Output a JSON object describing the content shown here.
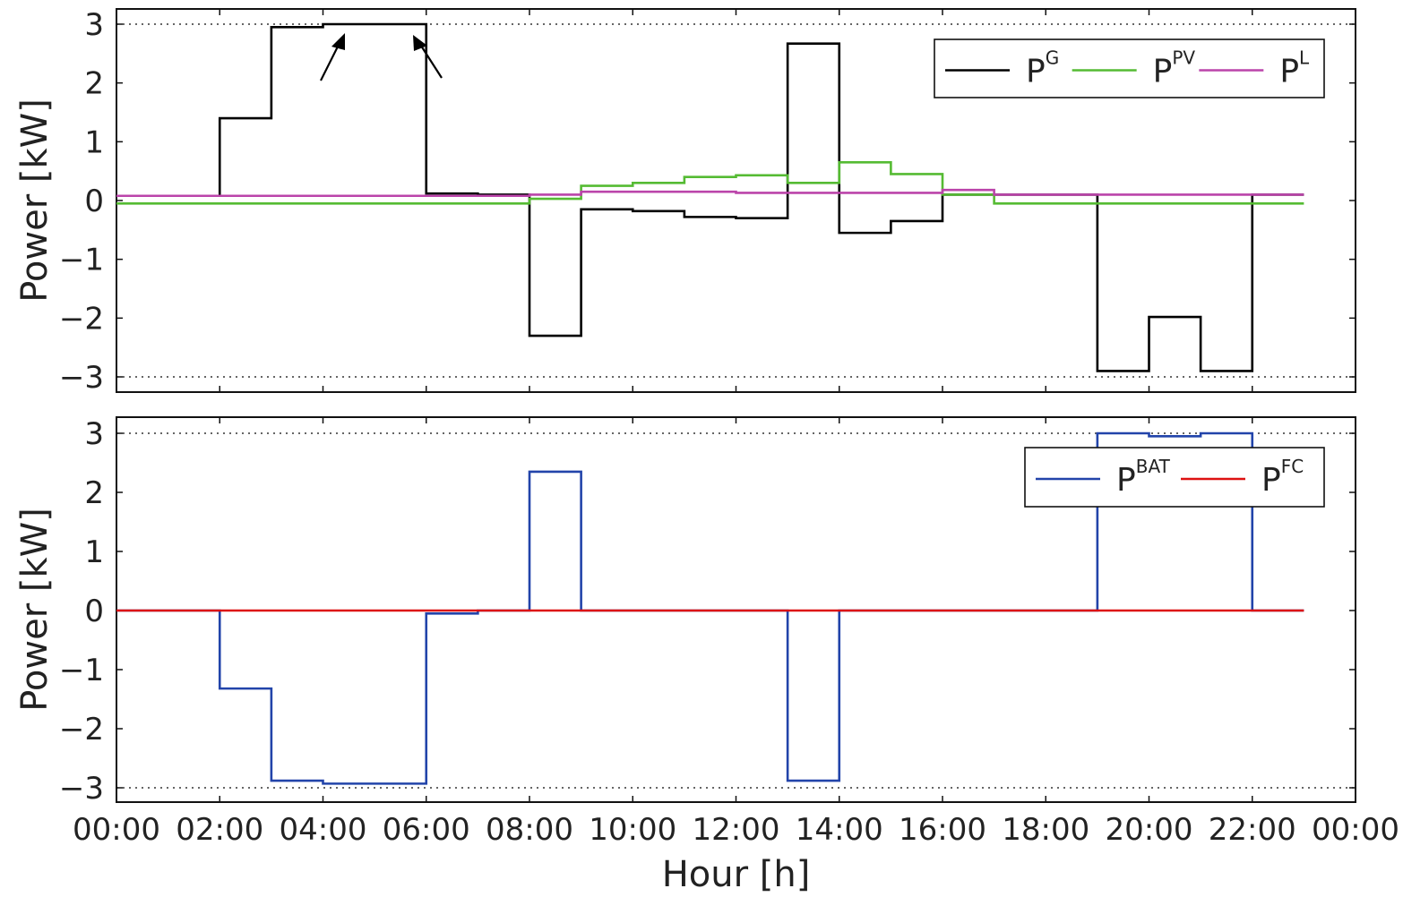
{
  "chart_data": [
    {
      "type": "line",
      "step": "post",
      "ylabel": "Power [kW]",
      "xlim_hours": [
        0,
        24
      ],
      "ylim": [
        -3.2,
        3.2
      ],
      "yticks": [
        "3",
        "2",
        "1",
        "0",
        "−1",
        "−2",
        "−3"
      ],
      "ytick_values": [
        3,
        2,
        1,
        0,
        -1,
        -2,
        -3
      ],
      "hlines": [
        3,
        -3
      ],
      "legend": "top-right",
      "series": [
        {
          "name": "P",
          "sup": "G",
          "color": "#000000",
          "x": [
            0,
            2,
            3,
            4,
            5,
            6,
            7,
            8,
            9,
            10,
            11,
            12,
            13,
            14,
            15,
            16,
            17,
            18,
            19,
            20,
            21,
            22,
            23
          ],
          "y": [
            0.08,
            1.4,
            2.95,
            3.0,
            3.0,
            0.12,
            0.1,
            -2.3,
            -0.15,
            -0.18,
            -0.28,
            -0.3,
            2.67,
            -0.55,
            -0.35,
            0.1,
            0.1,
            0.1,
            -2.9,
            -1.98,
            -2.9,
            0.1,
            0.1
          ]
        },
        {
          "name": "P",
          "sup": "PV",
          "color": "#55bb33",
          "x": [
            0,
            8,
            9,
            10,
            11,
            12,
            13,
            14,
            15,
            16,
            17,
            23
          ],
          "y": [
            -0.05,
            0.03,
            0.25,
            0.3,
            0.4,
            0.43,
            0.3,
            0.65,
            0.45,
            0.1,
            -0.05,
            -0.05
          ]
        },
        {
          "name": "P",
          "sup": "L",
          "color": "#bb44aa",
          "x": [
            0,
            8,
            9,
            12,
            16,
            17,
            23
          ],
          "y": [
            0.08,
            0.1,
            0.15,
            0.13,
            0.18,
            0.1,
            0.1
          ]
        }
      ]
    },
    {
      "type": "line",
      "step": "post",
      "xlabel": "Hour [h]",
      "ylabel": "Power [kW]",
      "xlim_hours": [
        0,
        24
      ],
      "ylim": [
        -3.2,
        3.2
      ],
      "xticks": [
        "00:00",
        "02:00",
        "04:00",
        "06:00",
        "08:00",
        "10:00",
        "12:00",
        "14:00",
        "16:00",
        "18:00",
        "20:00",
        "22:00",
        "00:00"
      ],
      "xtick_hours": [
        0,
        2,
        4,
        6,
        8,
        10,
        12,
        14,
        16,
        18,
        20,
        22,
        24
      ],
      "yticks": [
        "3",
        "2",
        "1",
        "0",
        "−1",
        "−2",
        "−3"
      ],
      "ytick_values": [
        3,
        2,
        1,
        0,
        -1,
        -2,
        -3
      ],
      "hlines": [
        3,
        -3
      ],
      "legend": "top-right",
      "series": [
        {
          "name": "P",
          "sup": "BAT",
          "color": "#2244aa",
          "x": [
            0,
            2,
            3,
            4,
            5,
            6,
            7,
            8,
            9,
            13,
            14,
            19,
            20,
            21,
            22,
            23
          ],
          "y": [
            0,
            -1.32,
            -2.88,
            -2.93,
            -2.93,
            -0.05,
            0,
            2.35,
            0,
            -2.88,
            0,
            3.0,
            2.95,
            3.0,
            0,
            0
          ]
        },
        {
          "name": "P",
          "sup": "FC",
          "color": "#dd1111",
          "x": [
            0,
            23
          ],
          "y": [
            0,
            0
          ]
        }
      ]
    }
  ]
}
